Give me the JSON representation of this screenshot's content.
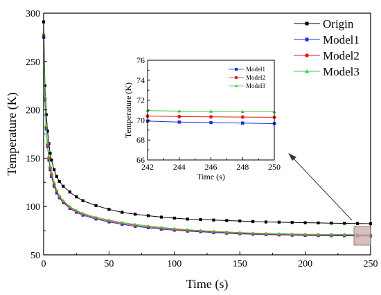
{
  "chart_data": [
    {
      "type": "line",
      "title": "",
      "xlabel": "Time (s)",
      "ylabel": "Temperature (K)",
      "xlim": [
        0,
        250
      ],
      "ylim": [
        50,
        300
      ],
      "xticks": [
        0,
        50,
        100,
        150,
        200,
        250
      ],
      "yticks": [
        50,
        100,
        150,
        200,
        250,
        300
      ],
      "legend_position": "top-right",
      "grid": false,
      "series": [
        {
          "name": "Origin",
          "color": "#000000",
          "marker": "square",
          "x": [
            0,
            1,
            2,
            3,
            4,
            5,
            6,
            8,
            10,
            12,
            15,
            20,
            25,
            30,
            40,
            50,
            60,
            70,
            80,
            90,
            100,
            110,
            120,
            130,
            140,
            150,
            160,
            170,
            180,
            190,
            200,
            210,
            220,
            230,
            240,
            250
          ],
          "y": [
            291,
            225,
            195,
            178,
            165,
            155,
            148,
            138,
            131,
            126,
            121,
            115,
            110,
            106,
            101,
            97,
            94,
            92,
            90.5,
            89,
            88,
            87,
            86.5,
            86,
            85.5,
            85,
            84.5,
            84,
            83.8,
            83.5,
            83.2,
            83,
            82.8,
            82.6,
            82.4,
            82.2
          ]
        },
        {
          "name": "Model1",
          "color": "#1f2fd4",
          "marker": "square",
          "x": [
            0,
            1,
            2,
            3,
            4,
            5,
            6,
            8,
            10,
            12,
            15,
            20,
            25,
            30,
            40,
            50,
            60,
            70,
            80,
            90,
            100,
            110,
            120,
            130,
            140,
            150,
            160,
            170,
            180,
            190,
            200,
            210,
            220,
            230,
            240,
            250
          ],
          "y": [
            275,
            210,
            180,
            162,
            148,
            138,
            131,
            121,
            114,
            109,
            104,
            98,
            94,
            91,
            87,
            84,
            81.5,
            79.5,
            78,
            76.5,
            75.5,
            74.5,
            73.8,
            73,
            72.4,
            71.8,
            71.3,
            70.9,
            70.6,
            70.3,
            70.1,
            69.9,
            69.8,
            69.7,
            69.6,
            69.5
          ]
        },
        {
          "name": "Model2",
          "color": "#e31a1c",
          "marker": "circle",
          "x": [
            0,
            1,
            2,
            3,
            4,
            5,
            6,
            8,
            10,
            12,
            15,
            20,
            25,
            30,
            40,
            50,
            60,
            70,
            80,
            90,
            100,
            110,
            120,
            130,
            140,
            150,
            160,
            170,
            180,
            190,
            200,
            210,
            220,
            230,
            240,
            250
          ],
          "y": [
            277,
            212,
            182,
            164,
            150,
            140,
            133,
            123,
            116,
            110,
            105,
            99,
            95,
            92,
            88,
            85,
            82.5,
            80.5,
            79,
            77.5,
            76.3,
            75.3,
            74.5,
            73.7,
            73,
            72.4,
            71.9,
            71.5,
            71.2,
            70.9,
            70.7,
            70.6,
            70.5,
            70.4,
            70.3,
            70.2
          ]
        },
        {
          "name": "Model3",
          "color": "#3cc83c",
          "marker": "triangle",
          "x": [
            0,
            1,
            2,
            3,
            4,
            5,
            6,
            8,
            10,
            12,
            15,
            20,
            25,
            30,
            40,
            50,
            60,
            70,
            80,
            90,
            100,
            110,
            120,
            130,
            140,
            150,
            160,
            170,
            180,
            190,
            200,
            210,
            220,
            230,
            240,
            250
          ],
          "y": [
            279,
            214,
            184,
            166,
            152,
            142,
            135,
            125,
            117,
            111,
            106,
            100,
            96,
            93,
            89,
            86,
            83.5,
            81.5,
            80,
            78.5,
            77.2,
            76.1,
            75.2,
            74.4,
            73.7,
            73.1,
            72.6,
            72.2,
            71.9,
            71.6,
            71.4,
            71.2,
            71.1,
            71,
            70.9,
            70.8
          ]
        }
      ]
    },
    {
      "type": "line",
      "title": "",
      "xlabel": "Time (s)",
      "ylabel": "Temperature (K)",
      "xlim": [
        242,
        250
      ],
      "ylim": [
        66,
        76
      ],
      "xticks": [
        242,
        244,
        246,
        248,
        250
      ],
      "yticks": [
        66,
        68,
        70,
        72,
        74,
        76
      ],
      "legend_position": "top-left",
      "series": [
        {
          "name": "Model1",
          "color": "#1f2fd4",
          "marker": "square",
          "x": [
            242,
            244,
            246,
            248,
            250
          ],
          "y": [
            69.9,
            69.8,
            69.75,
            69.7,
            69.65
          ]
        },
        {
          "name": "Model2",
          "color": "#e31a1c",
          "marker": "circle",
          "x": [
            242,
            244,
            246,
            248,
            250
          ],
          "y": [
            70.4,
            70.35,
            70.32,
            70.3,
            70.28
          ]
        },
        {
          "name": "Model3",
          "color": "#3cc83c",
          "marker": "triangle",
          "x": [
            242,
            244,
            246,
            248,
            250
          ],
          "y": [
            70.95,
            70.9,
            70.87,
            70.85,
            70.83
          ]
        }
      ]
    }
  ]
}
